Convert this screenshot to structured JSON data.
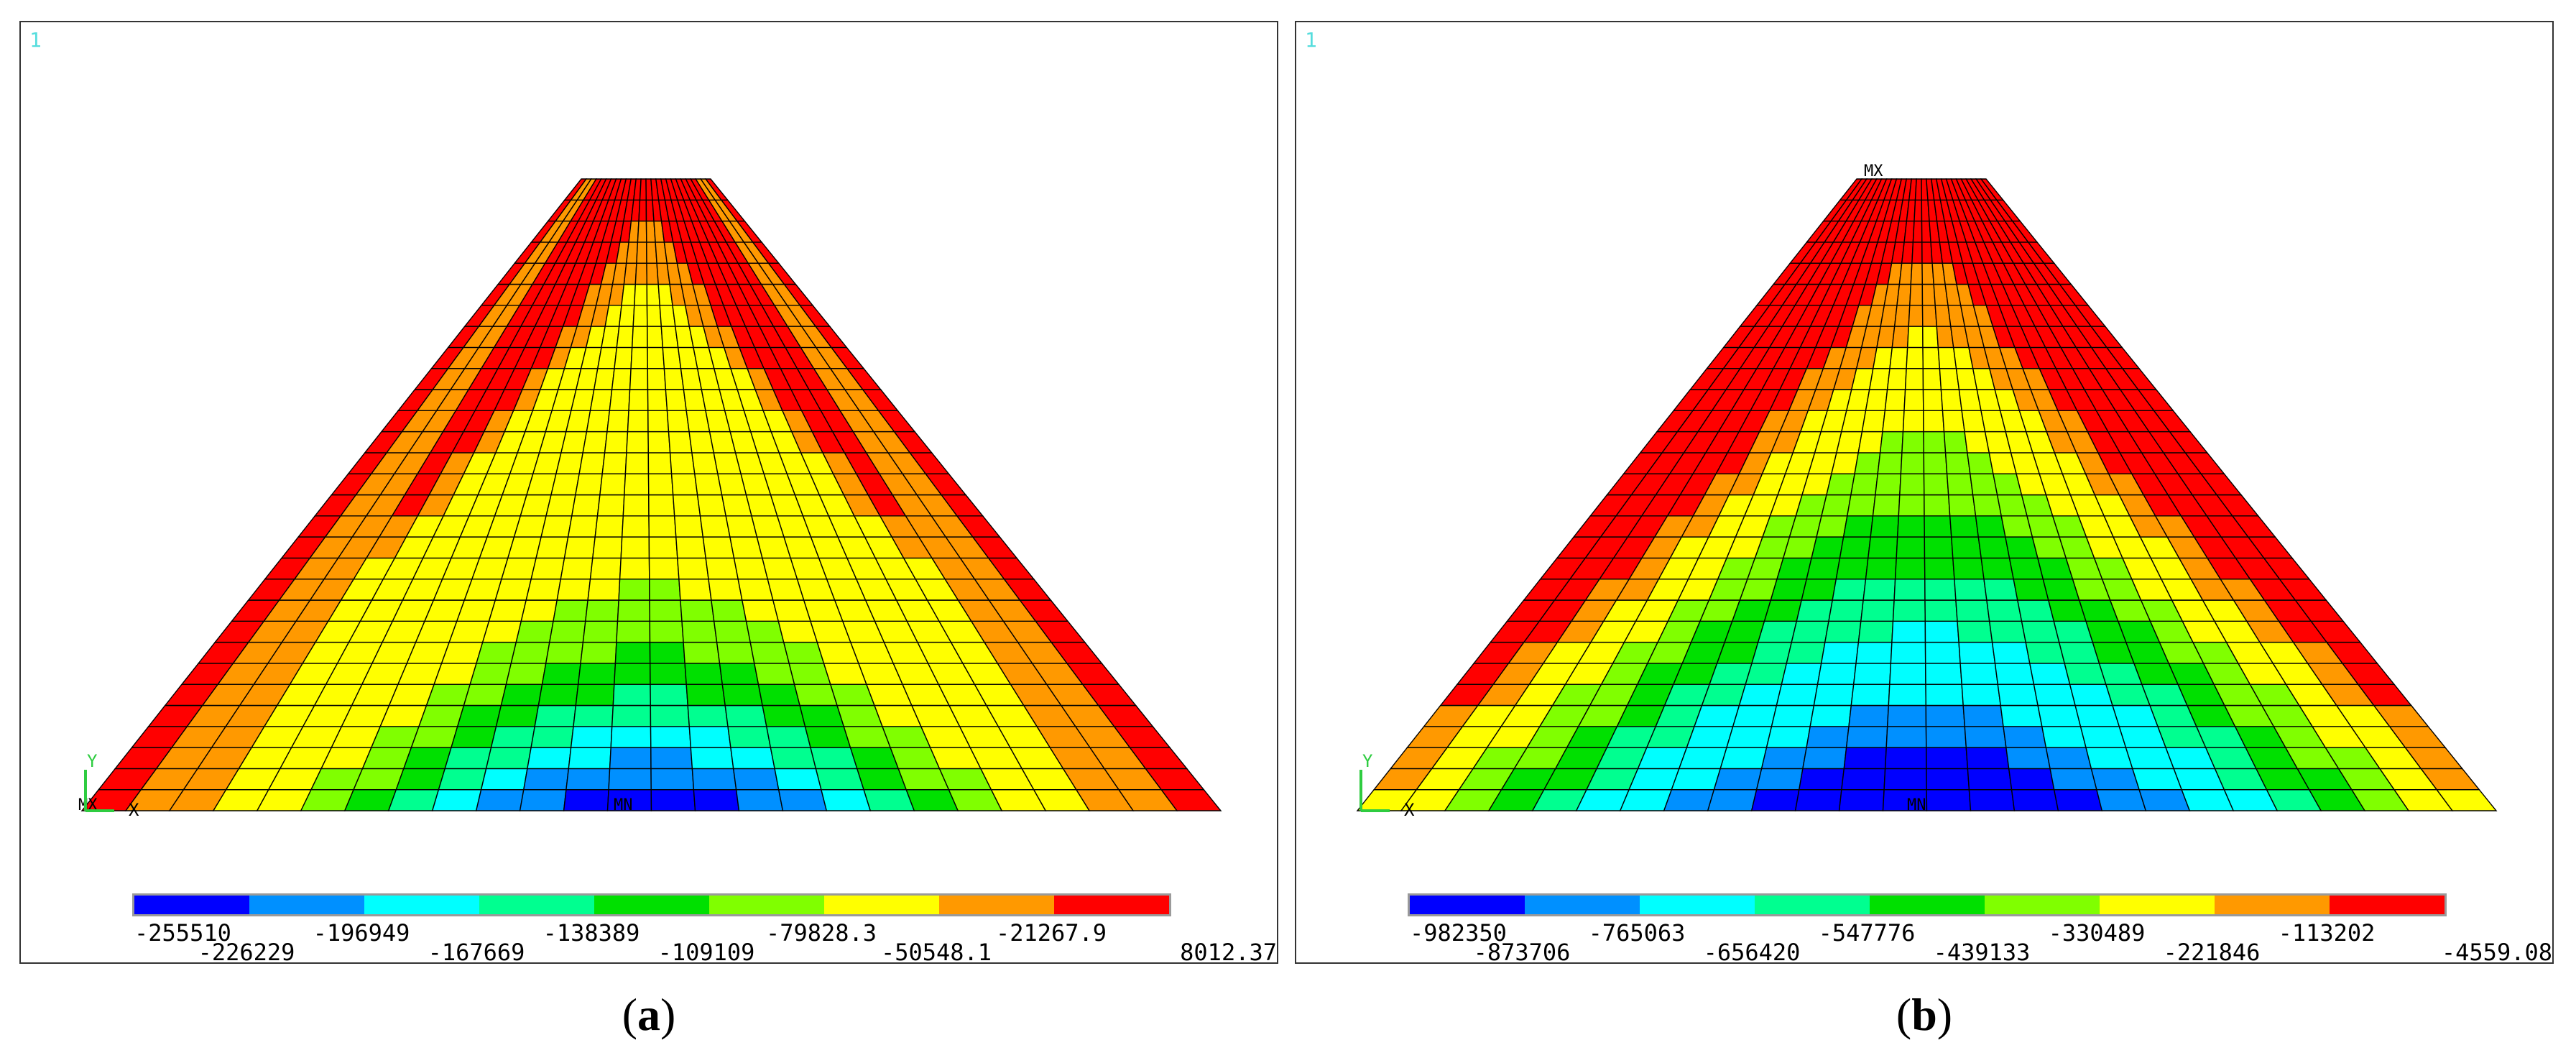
{
  "panels": [
    {
      "id": "a",
      "window_number": "1",
      "caption_letter": "a",
      "mx_label": "MX",
      "mn_label": "MN",
      "axis_y_label": "Y",
      "axis_x_label": "X",
      "legend_values": [
        "-255510",
        "-226229",
        "-196949",
        "-167669",
        "-138389",
        "-109109",
        "-79828.3",
        "-50548.1",
        "-21267.9",
        "8012.37"
      ]
    },
    {
      "id": "b",
      "window_number": "1",
      "caption_letter": "b",
      "mx_label": "MX",
      "mn_label": "MN",
      "axis_y_label": "Y",
      "axis_x_label": "X",
      "legend_values": [
        "-982350",
        "-873706",
        "-765063",
        "-656420",
        "-547776",
        "-439133",
        "-330489",
        "-221846",
        "-113202",
        "-4559.08"
      ]
    }
  ],
  "colors": {
    "contour_bands": [
      "#0000ff",
      "#0090ff",
      "#00ffff",
      "#00ff90",
      "#00e000",
      "#80ff00",
      "#ffff00",
      "#ff9900",
      "#ff0000"
    ],
    "window_number": "#55dddd",
    "mesh_line": "#000000"
  }
}
